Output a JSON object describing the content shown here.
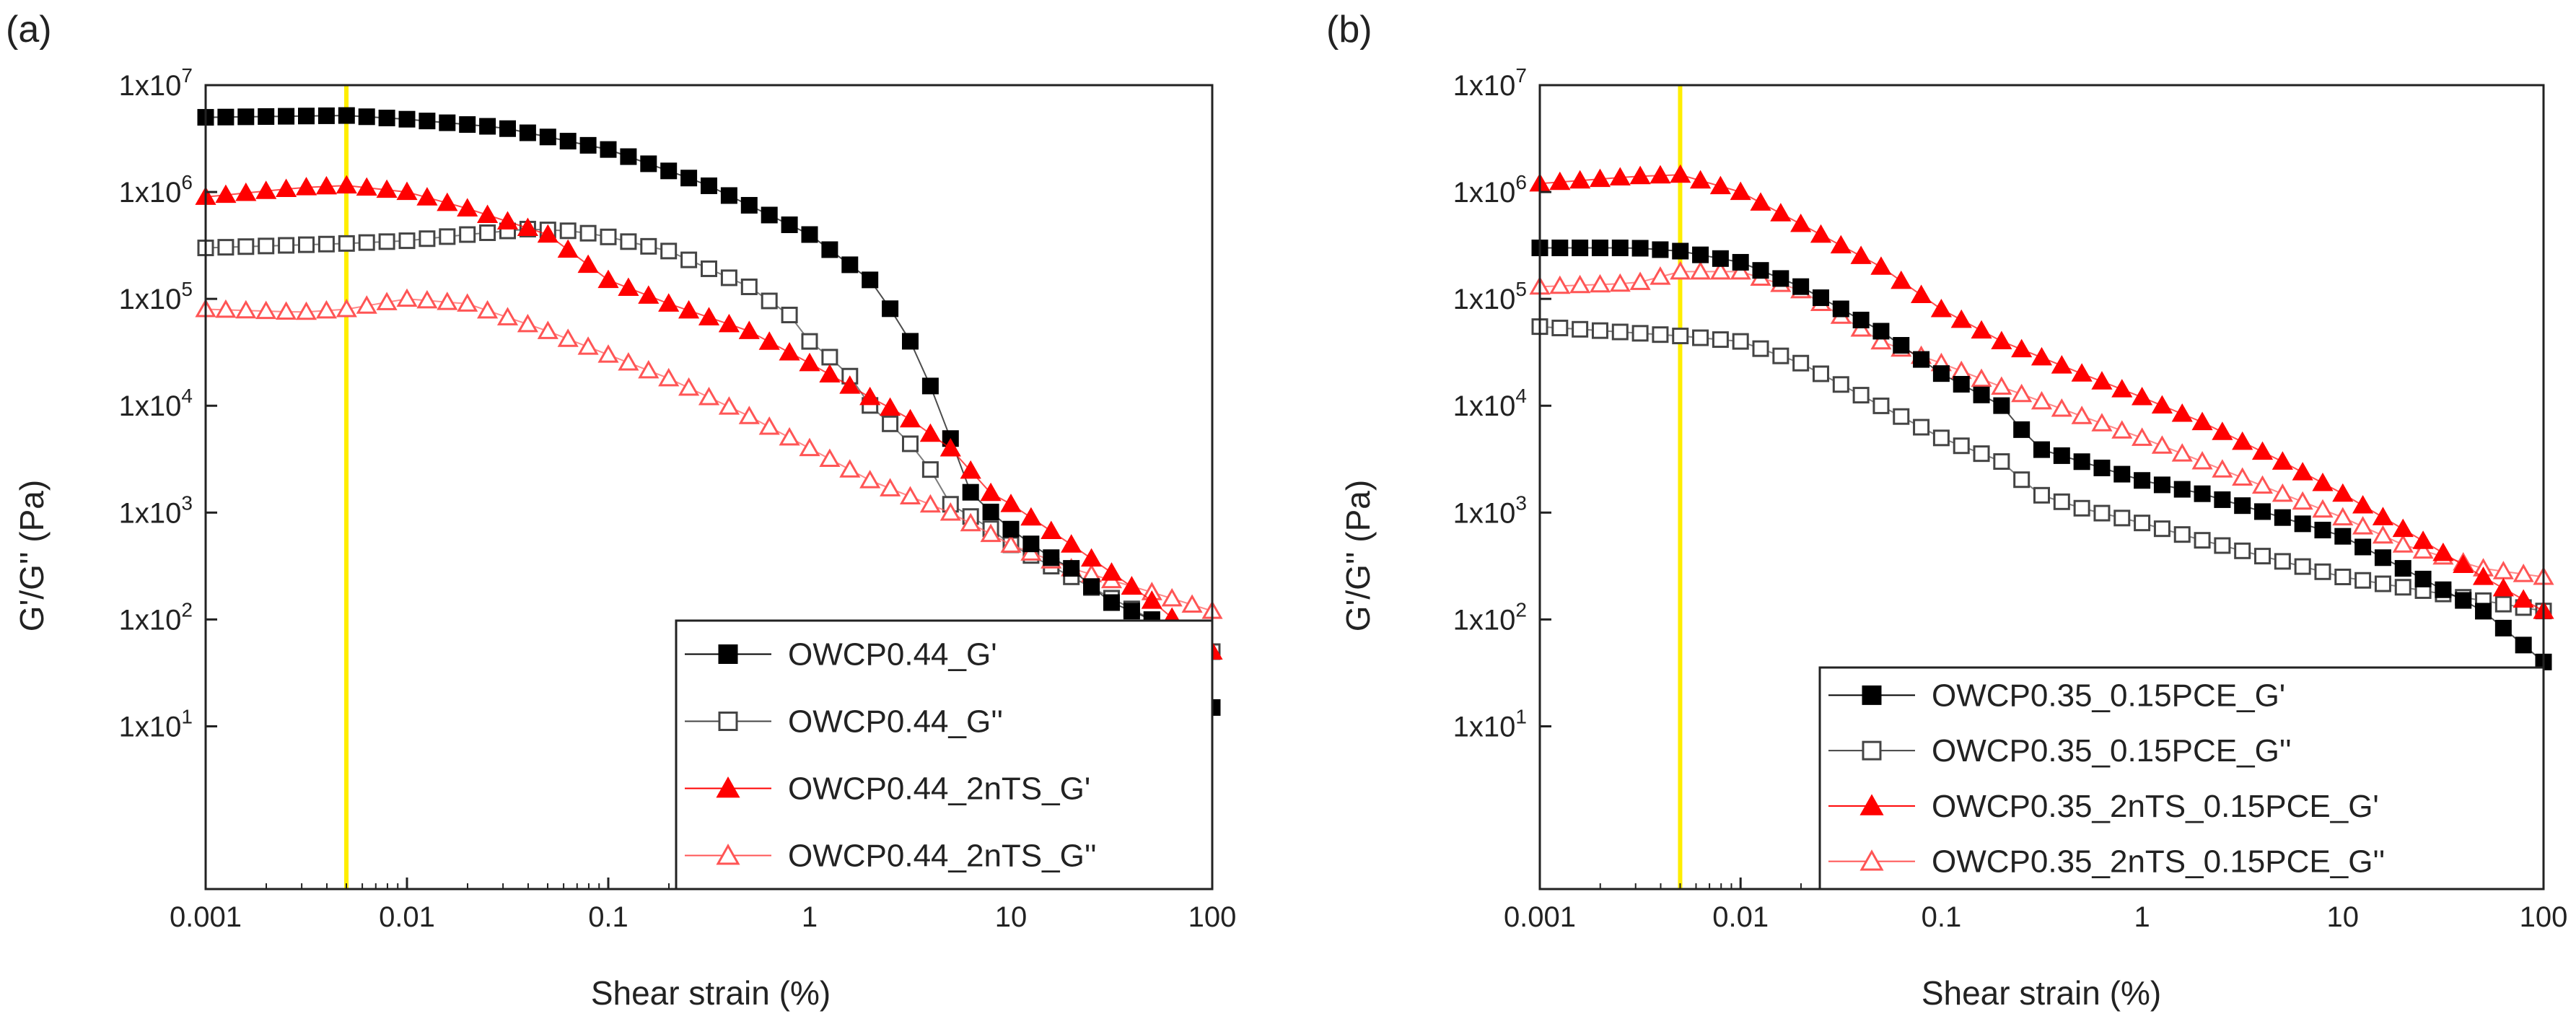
{
  "figure": {
    "panels": [
      "(a)",
      "(b)"
    ]
  },
  "colors": {
    "black": "#000000",
    "red": "#ff0000",
    "grey_open": "#444444",
    "pink_open": "#ff5555",
    "vline": "#ffee00",
    "axis": "#222222"
  },
  "chart_data": [
    {
      "type": "scatter",
      "panel": "(a)",
      "xscale": "log",
      "yscale": "log",
      "xlim": [
        0.001,
        100
      ],
      "ylim": [
        0.3,
        10000000
      ],
      "xlabel": "Shear strain (%)",
      "ylabel": "G'/G'' (Pa)",
      "xticks": [
        0.001,
        0.01,
        0.1,
        1,
        10,
        100
      ],
      "xtick_labels": [
        "0.001",
        "0.01",
        "0.1",
        "1",
        "10",
        "100"
      ],
      "yticks": [
        10,
        100,
        1000,
        10000,
        100000,
        1000000,
        10000000
      ],
      "ytick_labels": [
        "1x10",
        "1x10",
        "1x10",
        "1x10",
        "1x10",
        "1x10",
        "1x10"
      ],
      "ytick_exponents": [
        "1",
        "2",
        "3",
        "4",
        "5",
        "6",
        "7"
      ],
      "vline_x": 0.005,
      "legend_position": "bottom-right",
      "series": [
        {
          "name": "OWCP0.44_G'",
          "color": "#000000",
          "marker": "square",
          "filled": true,
          "anchors": [
            [
              0.001,
              5000000
            ],
            [
              0.005,
              5200000
            ],
            [
              0.01,
              4800000
            ],
            [
              0.03,
              4000000
            ],
            [
              0.1,
              2500000
            ],
            [
              0.3,
              1200000
            ],
            [
              1,
              400000
            ],
            [
              2,
              150000
            ],
            [
              3,
              50000
            ],
            [
              4,
              15000
            ],
            [
              5,
              5000
            ],
            [
              6,
              1700
            ],
            [
              8,
              1000
            ],
            [
              10,
              700
            ],
            [
              15,
              400
            ],
            [
              20,
              300
            ],
            [
              30,
              150
            ],
            [
              50,
              100
            ],
            [
              100,
              15
            ]
          ]
        },
        {
          "name": "OWCP0.44_G''",
          "color": "#444444",
          "marker": "square",
          "filled": false,
          "anchors": [
            [
              0.001,
              300000
            ],
            [
              0.005,
              330000
            ],
            [
              0.01,
              350000
            ],
            [
              0.02,
              400000
            ],
            [
              0.04,
              450000
            ],
            [
              0.07,
              430000
            ],
            [
              0.1,
              380000
            ],
            [
              0.2,
              280000
            ],
            [
              0.3,
              200000
            ],
            [
              0.5,
              130000
            ],
            [
              0.8,
              70000
            ],
            [
              1,
              40000
            ],
            [
              1.5,
              22000
            ],
            [
              2,
              10000
            ],
            [
              3,
              5000
            ],
            [
              4,
              2500
            ],
            [
              5,
              1200
            ],
            [
              8,
              700
            ],
            [
              10,
              500
            ],
            [
              20,
              250
            ],
            [
              50,
              100
            ],
            [
              100,
              50
            ]
          ]
        },
        {
          "name": "OWCP0.44_2nTS_G'",
          "color": "#ff0000",
          "marker": "triangle",
          "filled": true,
          "anchors": [
            [
              0.001,
              900000
            ],
            [
              0.003,
              1100000
            ],
            [
              0.005,
              1150000
            ],
            [
              0.01,
              1000000
            ],
            [
              0.02,
              700000
            ],
            [
              0.05,
              400000
            ],
            [
              0.1,
              150000
            ],
            [
              0.2,
              90000
            ],
            [
              0.5,
              50000
            ],
            [
              1,
              25000
            ],
            [
              2,
              12000
            ],
            [
              3,
              8000
            ],
            [
              5,
              4000
            ],
            [
              8,
              1500
            ],
            [
              10,
              1200
            ],
            [
              20,
              500
            ],
            [
              50,
              150
            ],
            [
              100,
              50
            ]
          ]
        },
        {
          "name": "OWCP0.44_2nTS_G''",
          "color": "#ff5555",
          "marker": "triangle",
          "filled": false,
          "anchors": [
            [
              0.001,
              80000
            ],
            [
              0.003,
              75000
            ],
            [
              0.005,
              80000
            ],
            [
              0.01,
              100000
            ],
            [
              0.02,
              90000
            ],
            [
              0.05,
              50000
            ],
            [
              0.1,
              30000
            ],
            [
              0.2,
              18000
            ],
            [
              0.5,
              8000
            ],
            [
              1,
              4000
            ],
            [
              2,
              2000
            ],
            [
              5,
              1000
            ],
            [
              10,
              500
            ],
            [
              20,
              300
            ],
            [
              50,
              180
            ],
            [
              100,
              120
            ]
          ]
        }
      ]
    },
    {
      "type": "scatter",
      "panel": "(b)",
      "xscale": "log",
      "yscale": "log",
      "xlim": [
        0.001,
        100
      ],
      "ylim": [
        0.3,
        10000000
      ],
      "xlabel": "Shear strain (%)",
      "ylabel": "G'/G'' (Pa)",
      "xticks": [
        0.001,
        0.01,
        0.1,
        1,
        10,
        100
      ],
      "xtick_labels": [
        "0.001",
        "0.01",
        "0.1",
        "1",
        "10",
        "100"
      ],
      "yticks": [
        10,
        100,
        1000,
        10000,
        100000,
        1000000,
        10000000
      ],
      "ytick_labels": [
        "1x10",
        "1x10",
        "1x10",
        "1x10",
        "1x10",
        "1x10",
        "1x10"
      ],
      "ytick_exponents": [
        "1",
        "2",
        "3",
        "4",
        "5",
        "6",
        "7"
      ],
      "vline_x": 0.005,
      "legend_position": "bottom-right",
      "series": [
        {
          "name": "OWCP0.35_0.15PCE_G'",
          "color": "#000000",
          "marker": "square",
          "filled": true,
          "anchors": [
            [
              0.001,
              300000
            ],
            [
              0.003,
              300000
            ],
            [
              0.005,
              280000
            ],
            [
              0.01,
              220000
            ],
            [
              0.02,
              130000
            ],
            [
              0.05,
              50000
            ],
            [
              0.1,
              20000
            ],
            [
              0.2,
              10000
            ],
            [
              0.3,
              4000
            ],
            [
              0.5,
              3000
            ],
            [
              1,
              2000
            ],
            [
              2,
              1500
            ],
            [
              5,
              900
            ],
            [
              10,
              600
            ],
            [
              20,
              300
            ],
            [
              50,
              120
            ],
            [
              100,
              40
            ]
          ]
        },
        {
          "name": "OWCP0.35_0.15PCE_G''",
          "color": "#444444",
          "marker": "square",
          "filled": false,
          "anchors": [
            [
              0.001,
              55000
            ],
            [
              0.005,
              45000
            ],
            [
              0.01,
              40000
            ],
            [
              0.02,
              25000
            ],
            [
              0.05,
              10000
            ],
            [
              0.1,
              5000
            ],
            [
              0.2,
              3000
            ],
            [
              0.3,
              1500
            ],
            [
              0.5,
              1100
            ],
            [
              1,
              800
            ],
            [
              2,
              550
            ],
            [
              5,
              350
            ],
            [
              10,
              250
            ],
            [
              20,
              200
            ],
            [
              50,
              150
            ],
            [
              100,
              120
            ]
          ]
        },
        {
          "name": "OWCP0.35_2nTS_0.15PCE_G'",
          "color": "#ff0000",
          "marker": "triangle",
          "filled": true,
          "anchors": [
            [
              0.001,
              1200000
            ],
            [
              0.003,
              1400000
            ],
            [
              0.005,
              1450000
            ],
            [
              0.01,
              1000000
            ],
            [
              0.02,
              500000
            ],
            [
              0.05,
              200000
            ],
            [
              0.1,
              80000
            ],
            [
              0.2,
              40000
            ],
            [
              0.5,
              20000
            ],
            [
              1,
              12000
            ],
            [
              2,
              7000
            ],
            [
              5,
              3000
            ],
            [
              10,
              1500
            ],
            [
              20,
              700
            ],
            [
              50,
              250
            ],
            [
              100,
              120
            ]
          ]
        },
        {
          "name": "OWCP0.35_2nTS_0.15PCE_G''",
          "color": "#ff5555",
          "marker": "triangle",
          "filled": false,
          "anchors": [
            [
              0.001,
              130000
            ],
            [
              0.003,
              140000
            ],
            [
              0.005,
              180000
            ],
            [
              0.01,
              180000
            ],
            [
              0.02,
              120000
            ],
            [
              0.05,
              40000
            ],
            [
              0.1,
              25000
            ],
            [
              0.2,
              15000
            ],
            [
              0.5,
              8000
            ],
            [
              1,
              5000
            ],
            [
              2,
              3000
            ],
            [
              5,
              1500
            ],
            [
              10,
              900
            ],
            [
              20,
              500
            ],
            [
              50,
              300
            ],
            [
              100,
              250
            ]
          ]
        }
      ]
    }
  ]
}
